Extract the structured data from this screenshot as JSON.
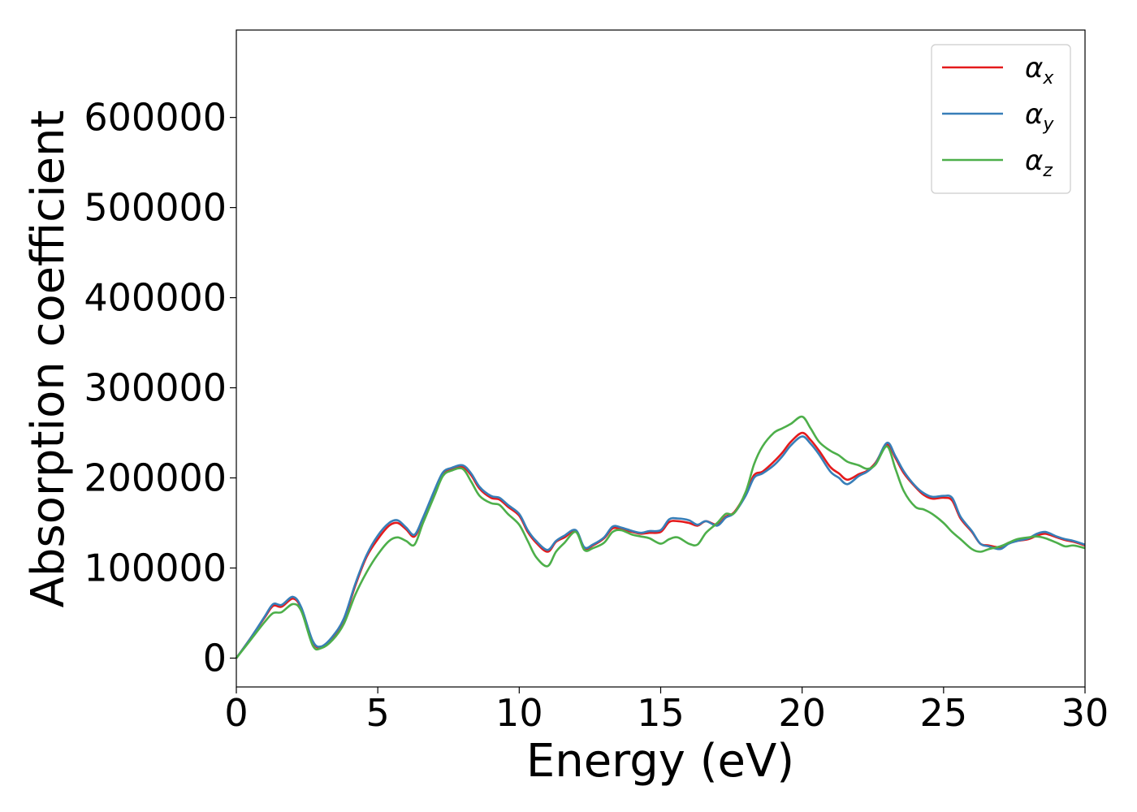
{
  "chart_data": {
    "type": "line",
    "xlabel": "Energy (eV)",
    "ylabel": "Absorption coefficient",
    "xlim": [
      0,
      30
    ],
    "ylim": [
      -32000,
      697000
    ],
    "xticks": [
      0,
      5,
      10,
      15,
      20,
      25,
      30
    ],
    "yticks": [
      0,
      100000,
      200000,
      300000,
      400000,
      500000,
      600000
    ],
    "grid": false,
    "legend_position": "top-right",
    "x": [
      0,
      0.5,
      1.0,
      1.3,
      1.6,
      2.0,
      2.3,
      2.7,
      3.0,
      3.4,
      3.8,
      4.2,
      4.6,
      5.0,
      5.4,
      5.7,
      6.0,
      6.3,
      6.6,
      7.0,
      7.3,
      7.6,
      8.0,
      8.3,
      8.6,
      9.0,
      9.3,
      9.6,
      10.0,
      10.3,
      10.6,
      11.0,
      11.3,
      11.6,
      12.0,
      12.3,
      12.6,
      13.0,
      13.3,
      13.6,
      14.0,
      14.3,
      14.6,
      15.0,
      15.3,
      15.6,
      16.0,
      16.3,
      16.6,
      17.0,
      17.3,
      17.6,
      18.0,
      18.3,
      18.6,
      19.0,
      19.3,
      19.6,
      20.0,
      20.3,
      20.6,
      21.0,
      21.3,
      21.6,
      22.0,
      22.3,
      22.6,
      23.0,
      23.3,
      23.6,
      24.0,
      24.3,
      24.6,
      25.0,
      25.3,
      25.6,
      26.0,
      26.3,
      26.6,
      27.0,
      27.3,
      27.6,
      28.0,
      28.3,
      28.6,
      29.0,
      29.3,
      29.6,
      30.0
    ],
    "series": [
      {
        "name": "αx",
        "label_base": "α",
        "label_sub": "x",
        "color": "#e41a1c",
        "values": [
          0,
          22000,
          45000,
          58000,
          57000,
          66000,
          55000,
          18000,
          12000,
          22000,
          42000,
          80000,
          112000,
          132000,
          147000,
          150000,
          143000,
          135000,
          155000,
          185000,
          205000,
          210000,
          212000,
          203000,
          188000,
          178000,
          176000,
          168000,
          158000,
          140000,
          128000,
          118000,
          129000,
          134000,
          141000,
          122000,
          125000,
          133000,
          144000,
          143000,
          140000,
          138000,
          139000,
          140000,
          151000,
          152000,
          150000,
          147000,
          152000,
          148000,
          157000,
          162000,
          182000,
          203000,
          207000,
          218000,
          228000,
          240000,
          250000,
          242000,
          230000,
          212000,
          205000,
          198000,
          204000,
          208000,
          217000,
          237000,
          222000,
          205000,
          190000,
          181000,
          177000,
          178000,
          175000,
          155000,
          140000,
          127000,
          125000,
          123000,
          128000,
          130000,
          132000,
          136000,
          138000,
          134000,
          131000,
          129000,
          125000
        ]
      },
      {
        "name": "αy",
        "label_base": "α",
        "label_sub": "y",
        "color": "#377eb8",
        "values": [
          0,
          22000,
          46000,
          60000,
          59000,
          68000,
          56000,
          19000,
          13000,
          24000,
          44000,
          82000,
          114000,
          136000,
          150000,
          153000,
          145000,
          137000,
          156000,
          186000,
          206000,
          211000,
          214000,
          205000,
          190000,
          180000,
          178000,
          170000,
          160000,
          142000,
          130000,
          120000,
          130000,
          136000,
          142000,
          123000,
          126000,
          134000,
          146000,
          145000,
          141000,
          139000,
          141000,
          142000,
          154000,
          155000,
          153000,
          148000,
          152000,
          147000,
          156000,
          161000,
          180000,
          200000,
          205000,
          214000,
          224000,
          236000,
          246000,
          238000,
          226000,
          207000,
          200000,
          193000,
          202000,
          207000,
          216000,
          239000,
          224000,
          207000,
          191000,
          183000,
          179000,
          180000,
          178000,
          157000,
          141000,
          127000,
          124000,
          121000,
          127000,
          130000,
          133000,
          138000,
          140000,
          135000,
          132000,
          130000,
          126000
        ]
      },
      {
        "name": "αz",
        "label_base": "α",
        "label_sub": "z",
        "color": "#4daf4a",
        "values": [
          0,
          20000,
          40000,
          50000,
          51000,
          60000,
          52000,
          14000,
          11000,
          20000,
          38000,
          70000,
          95000,
          115000,
          130000,
          134000,
          130000,
          126000,
          150000,
          180000,
          202000,
          208000,
          210000,
          196000,
          180000,
          172000,
          170000,
          160000,
          148000,
          130000,
          112000,
          102000,
          118000,
          128000,
          140000,
          120000,
          122000,
          128000,
          140000,
          142000,
          137000,
          135000,
          133000,
          127000,
          132000,
          134000,
          127000,
          126000,
          139000,
          150000,
          160000,
          161000,
          184000,
          215000,
          235000,
          250000,
          255000,
          260000,
          268000,
          255000,
          240000,
          230000,
          225000,
          218000,
          214000,
          210000,
          215000,
          235000,
          210000,
          185000,
          168000,
          165000,
          160000,
          150000,
          140000,
          132000,
          121000,
          118000,
          121000,
          124000,
          128000,
          132000,
          134000,
          135000,
          133000,
          128000,
          124000,
          125000,
          122000
        ]
      }
    ]
  }
}
